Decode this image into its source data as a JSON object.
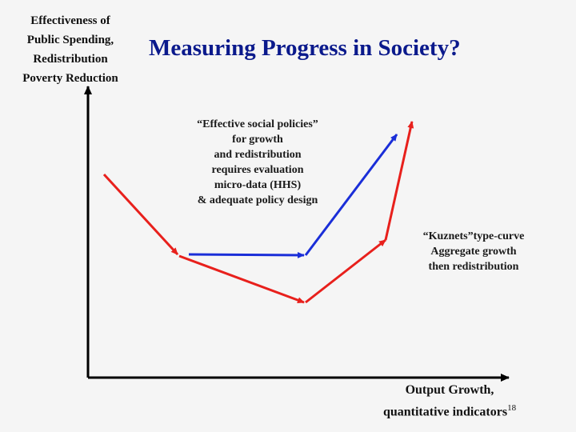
{
  "slide": {
    "title": "Measuring Progress in Society?",
    "y_axis_label_lines": [
      "Effectiveness of",
      "Public Spending,",
      "Redistribution",
      "Poverty Reduction"
    ],
    "x_axis_label_lines": [
      "Output Growth,",
      "quantitative indicators"
    ],
    "slide_number": "18"
  },
  "annotations": {
    "blue_lines": [
      "“Effective social policies”",
      "for growth",
      "and redistribution",
      "requires evaluation",
      "micro-data (HHS)",
      "& adequate policy design"
    ],
    "red_lines": [
      "“Kuznets”type-curve",
      "Aggregate growth",
      "then redistribution"
    ]
  },
  "colors": {
    "title": "#0b1a8c",
    "red_curve": "#e8201c",
    "blue_curve": "#1a2ed8",
    "axis": "#000000",
    "background": "#f5f5f5"
  },
  "curves": {
    "red_kuznets": {
      "name": "Kuznets-type curve",
      "description_points": [
        "high start",
        "decline",
        "trough",
        "rise",
        "peak"
      ]
    },
    "blue_policy": {
      "name": "Effective social policies path",
      "description_points": [
        "flat",
        "steep rise"
      ]
    }
  }
}
